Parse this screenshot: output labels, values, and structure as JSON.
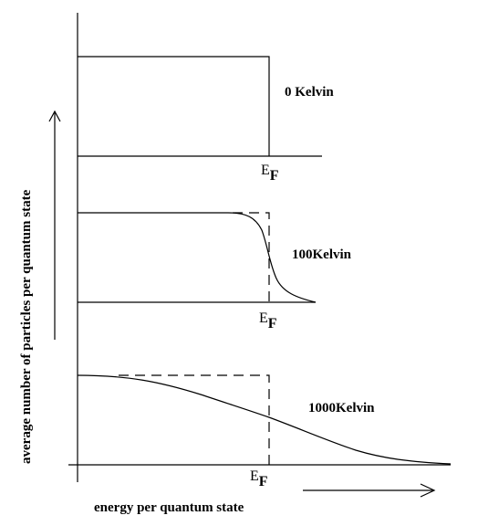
{
  "figure": {
    "y_axis_label": "average number of particles per quantum state",
    "x_axis_label": "energy per quantum state",
    "panels": [
      {
        "id": "panel-0k",
        "temperature_label": "0 Kelvin",
        "fermi_label": {
          "main": "E",
          "sub": "F"
        }
      },
      {
        "id": "panel-100k",
        "temperature_label": "100Kelvin",
        "fermi_label": {
          "main": "E",
          "sub": "F"
        }
      },
      {
        "id": "panel-1000k",
        "temperature_label": "1000Kelvin",
        "fermi_label": {
          "main": "E",
          "sub": "F"
        }
      }
    ]
  }
}
